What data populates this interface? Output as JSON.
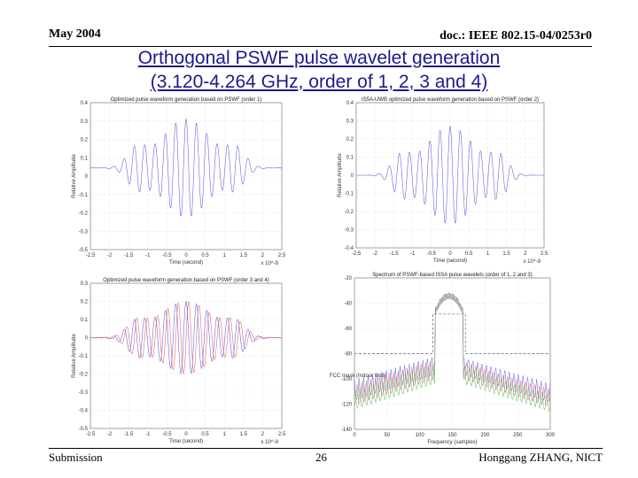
{
  "header": {
    "date": "May 2004",
    "doc": "doc.: IEEE 802.15-04/0253r0"
  },
  "title": {
    "line1": "Orthogonal PSWF pulse wavelet generation",
    "line2": "(3.120-4.264 GHz, order of 1, 2, 3 and 4)"
  },
  "footer": {
    "left": "Submission",
    "page": "26",
    "author": "Honggang ZHANG, NICT"
  },
  "colors": {
    "title": "#1a1a8c",
    "blue": "#4a4ad8",
    "red": "#e0505a",
    "green": "#3fae3f",
    "gray": "#888888"
  },
  "chart_data": [
    {
      "type": "line",
      "title": "Optimized pulse waveform generation based on PSWF (order 1)",
      "xlabel": "Time (second)",
      "ylabel": "Relative Amplitude",
      "xscale": "x 10^-9",
      "xlim": [
        -2.5,
        2.5
      ],
      "ylim": [
        -0.5,
        0.4
      ],
      "xticks": [
        "-2.5",
        "-2",
        "-1.5",
        "-1",
        "-0.5",
        "0",
        "0.5",
        "1",
        "1.5",
        "2",
        "2.5"
      ],
      "yticks": [
        "0.4",
        "0.3",
        "0.2",
        "0.1",
        "0",
        "-0.1",
        "-0.2",
        "-0.3",
        "-0.5"
      ],
      "series": [
        {
          "name": "order 1",
          "color": "blue",
          "amplitude": 0.3,
          "cycles_per_ns": 3.7,
          "envelope_width": 0.9
        }
      ]
    },
    {
      "type": "line",
      "title": "IS5A-UWB optimized pulse waveform generation based on PSWF (order 2)",
      "xlabel": "Time (second)",
      "ylabel": "Relative Amplitude",
      "xscale": "x 10^-9",
      "xlim": [
        -2.5,
        2.5
      ],
      "ylim": [
        -0.4,
        0.4
      ],
      "xticks": [
        "-2.5",
        "-2",
        "-1.5",
        "-1",
        "-0.5",
        "0",
        "0.5",
        "1",
        "1.5",
        "2",
        "2.5"
      ],
      "yticks": [
        "0.4",
        "0.3",
        "0.2",
        "0.1",
        "0",
        "-0.1",
        "-0.2",
        "-0.3",
        "-0.4"
      ],
      "series": [
        {
          "name": "order 2",
          "color": "blue",
          "amplitude": 0.27,
          "cycles_per_ns": 3.7,
          "envelope_width": 0.9
        }
      ]
    },
    {
      "type": "line",
      "title": "Optimized pulse waveform generation based on PSWF (order 3 and 4)",
      "xlabel": "Time (second)",
      "ylabel": "Relative Amplitude",
      "xscale": "x 10^-9",
      "xlim": [
        -2.5,
        2.5
      ],
      "ylim": [
        -0.5,
        0.3
      ],
      "xticks": [
        "-2.5",
        "-2",
        "-1.5",
        "-1",
        "-0.5",
        "0",
        "0.5",
        "1",
        "1.5",
        "2",
        "2.5"
      ],
      "yticks": [
        "0.3",
        "0.2",
        "0.1",
        "0",
        "-0.1",
        "-0.2",
        "-0.3",
        "-0.4",
        "-0.5"
      ],
      "series": [
        {
          "name": "order 3",
          "color": "blue",
          "amplitude": 0.2,
          "cycles_per_ns": 3.7,
          "envelope_width": 1.0
        },
        {
          "name": "order 4",
          "color": "red",
          "amplitude": 0.2,
          "cycles_per_ns": 3.7,
          "envelope_width": 1.0
        }
      ]
    },
    {
      "type": "line",
      "title": "Spectrum of PSWF-based ISSA pulse wavelets (order of 1, 2 and 3)",
      "xlabel": "Frequency (samples)",
      "ylabel": "",
      "xlim": [
        0,
        300
      ],
      "ylim": [
        -140,
        -10
      ],
      "xticks": [
        "0",
        "50",
        "100",
        "150",
        "200",
        "250",
        "300"
      ],
      "yticks": [
        "-20",
        "-40",
        "-60",
        "-80",
        "-100",
        "-120",
        "-140"
      ],
      "annotation": "FCC mask (Indoor limit)",
      "series": [
        {
          "name": "order 1",
          "color": "blue"
        },
        {
          "name": "order 2",
          "color": "red"
        },
        {
          "name": "order 3",
          "color": "green"
        }
      ]
    }
  ]
}
